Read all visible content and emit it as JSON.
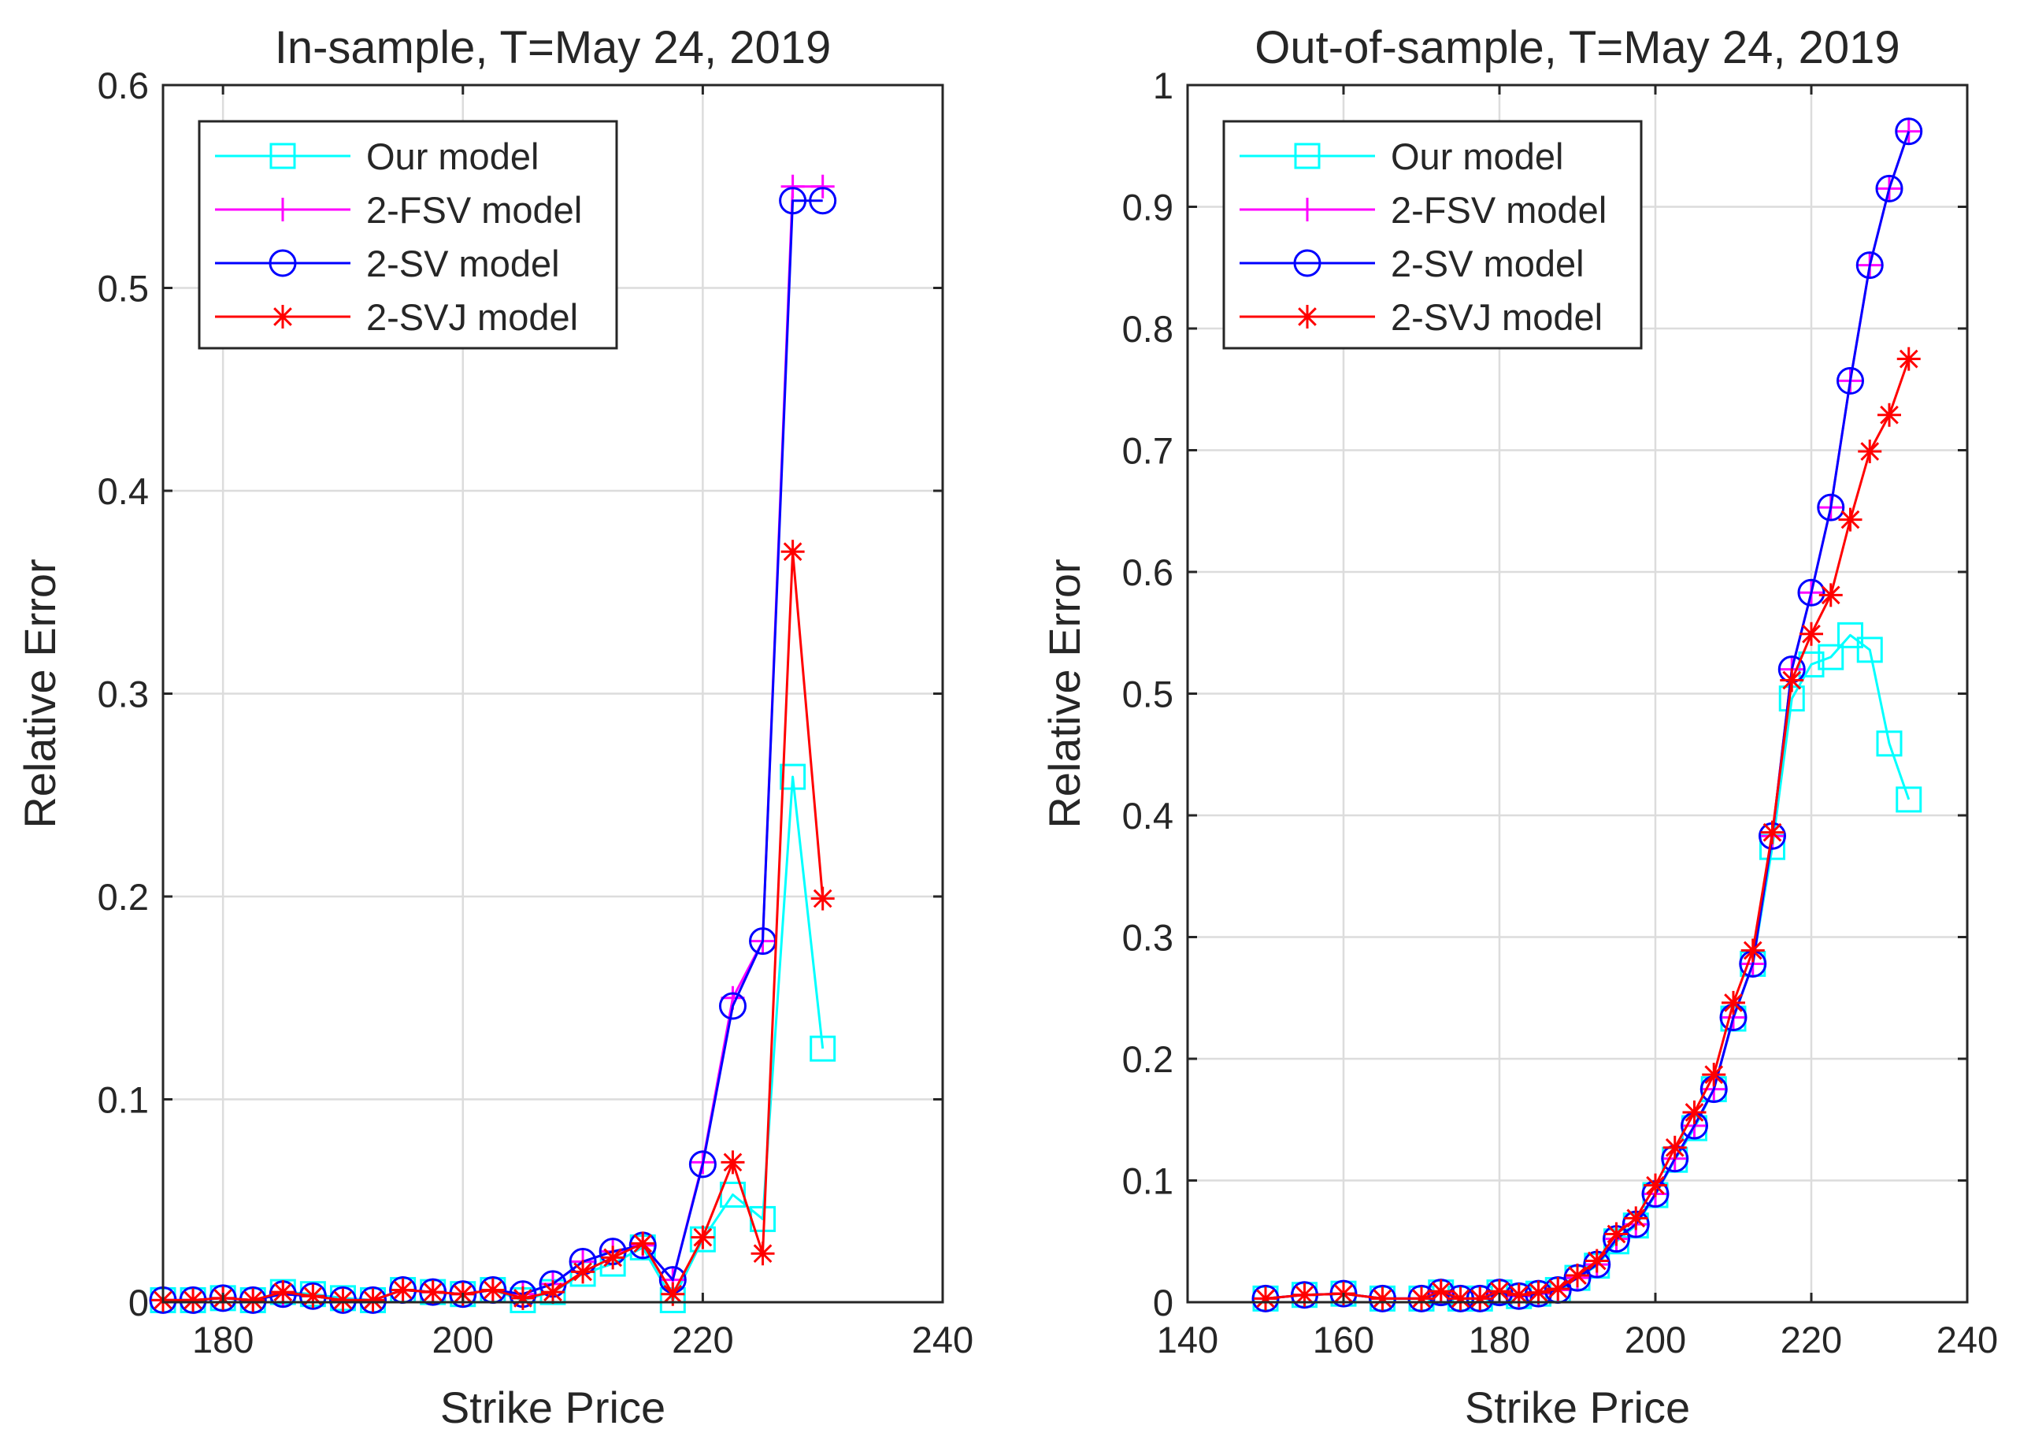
{
  "chart_data": [
    {
      "type": "line",
      "title": "In-sample, T=May 24, 2019",
      "xlabel": "Strike Price",
      "ylabel": "Relative Error",
      "xlim": [
        175,
        240
      ],
      "ylim": [
        0,
        0.6
      ],
      "xticks": [
        180,
        200,
        220,
        240
      ],
      "xtick_labels": [
        "180",
        "200",
        "220",
        "240"
      ],
      "yticks": [
        0,
        0.1,
        0.2,
        0.3,
        0.4,
        0.5,
        0.6
      ],
      "ytick_labels": [
        "0",
        "0.1",
        "0.2",
        "0.3",
        "0.4",
        "0.5",
        "0.6"
      ],
      "grid": true,
      "legend_position": "top-left",
      "x": [
        175,
        177.5,
        180,
        182.5,
        185,
        187.5,
        190,
        192.5,
        195,
        197.5,
        200,
        202.5,
        205,
        207.5,
        210,
        212.5,
        215,
        217.5,
        220,
        222.5,
        225,
        227.5,
        230
      ],
      "series": [
        {
          "name": "Our model",
          "color": "#00ffff",
          "marker": "square",
          "values": [
            0.001,
            0.001,
            0.002,
            0.001,
            0.005,
            0.004,
            0.002,
            0.001,
            0.006,
            0.005,
            0.004,
            0.006,
            0.001,
            0.005,
            0.014,
            0.019,
            0.027,
            0.001,
            0.031,
            0.053,
            0.041,
            0.259,
            0.125
          ]
        },
        {
          "name": "2-FSV model",
          "color": "#ff00ff",
          "marker": "plus",
          "values": [
            0.001,
            0.001,
            0.002,
            0.001,
            0.004,
            0.003,
            0.001,
            0.001,
            0.006,
            0.005,
            0.004,
            0.006,
            0.004,
            0.009,
            0.02,
            0.025,
            0.028,
            0.011,
            0.069,
            0.15,
            0.178,
            0.55,
            0.55
          ]
        },
        {
          "name": "2-SV model",
          "color": "#0000ff",
          "marker": "circle",
          "values": [
            0.001,
            0.001,
            0.002,
            0.001,
            0.004,
            0.003,
            0.001,
            0.001,
            0.006,
            0.005,
            0.004,
            0.006,
            0.004,
            0.009,
            0.02,
            0.025,
            0.028,
            0.011,
            0.068,
            0.146,
            0.178,
            0.543,
            0.543
          ]
        },
        {
          "name": "2-SVJ model",
          "color": "#ff0000",
          "marker": "asterisk",
          "values": [
            0.001,
            0.001,
            0.002,
            0.001,
            0.005,
            0.003,
            0.001,
            0.001,
            0.006,
            0.005,
            0.004,
            0.006,
            0.002,
            0.005,
            0.015,
            0.022,
            0.029,
            0.004,
            0.032,
            0.069,
            0.024,
            0.37,
            0.199
          ]
        }
      ]
    },
    {
      "type": "line",
      "title": "Out-of-sample, T=May 24, 2019",
      "xlabel": "Strike Price",
      "ylabel": "Relative Error",
      "xlim": [
        140,
        240
      ],
      "ylim": [
        0,
        1
      ],
      "xticks": [
        140,
        160,
        180,
        200,
        220,
        240
      ],
      "xtick_labels": [
        "140",
        "160",
        "180",
        "200",
        "220",
        "240"
      ],
      "yticks": [
        0,
        0.1,
        0.2,
        0.3,
        0.4,
        0.5,
        0.6,
        0.7,
        0.8,
        0.9,
        1
      ],
      "ytick_labels": [
        "0",
        "0.1",
        "0.2",
        "0.3",
        "0.4",
        "0.5",
        "0.6",
        "0.7",
        "0.8",
        "0.9",
        "1"
      ],
      "grid": true,
      "legend_position": "top-left",
      "x": [
        150,
        155,
        160,
        165,
        170,
        172.5,
        175,
        177.5,
        180,
        182.5,
        185,
        187.5,
        190,
        192.5,
        195,
        197.5,
        200,
        202.5,
        205,
        207.5,
        210,
        212.5,
        215,
        217.5,
        220,
        222.5,
        225,
        227.5,
        230,
        232.5
      ],
      "series": [
        {
          "name": "Our model",
          "color": "#00ffff",
          "marker": "square",
          "values": [
            0.003,
            0.006,
            0.007,
            0.003,
            0.003,
            0.008,
            0.003,
            0.003,
            0.008,
            0.005,
            0.007,
            0.01,
            0.02,
            0.03,
            0.05,
            0.063,
            0.088,
            0.117,
            0.143,
            0.175,
            0.233,
            0.278,
            0.374,
            0.496,
            0.524,
            0.53,
            0.548,
            0.536,
            0.459,
            0.413
          ]
        },
        {
          "name": "2-FSV model",
          "color": "#ff00ff",
          "marker": "plus",
          "values": [
            0.003,
            0.006,
            0.007,
            0.003,
            0.003,
            0.008,
            0.003,
            0.003,
            0.008,
            0.005,
            0.007,
            0.01,
            0.02,
            0.031,
            0.052,
            0.064,
            0.089,
            0.118,
            0.145,
            0.175,
            0.234,
            0.278,
            0.383,
            0.52,
            0.583,
            0.653,
            0.757,
            0.852,
            0.915,
            0.962
          ]
        },
        {
          "name": "2-SV model",
          "color": "#0000ff",
          "marker": "circle",
          "values": [
            0.003,
            0.006,
            0.007,
            0.003,
            0.003,
            0.008,
            0.003,
            0.003,
            0.008,
            0.005,
            0.007,
            0.01,
            0.02,
            0.031,
            0.052,
            0.064,
            0.089,
            0.118,
            0.145,
            0.175,
            0.234,
            0.278,
            0.383,
            0.52,
            0.583,
            0.653,
            0.757,
            0.852,
            0.915,
            0.962
          ]
        },
        {
          "name": "2-SVJ model",
          "color": "#ff0000",
          "marker": "asterisk",
          "values": [
            0.003,
            0.006,
            0.007,
            0.003,
            0.003,
            0.009,
            0.003,
            0.003,
            0.009,
            0.006,
            0.008,
            0.011,
            0.022,
            0.034,
            0.056,
            0.069,
            0.096,
            0.127,
            0.156,
            0.187,
            0.246,
            0.289,
            0.386,
            0.511,
            0.549,
            0.581,
            0.643,
            0.699,
            0.729,
            0.775
          ]
        }
      ]
    }
  ]
}
